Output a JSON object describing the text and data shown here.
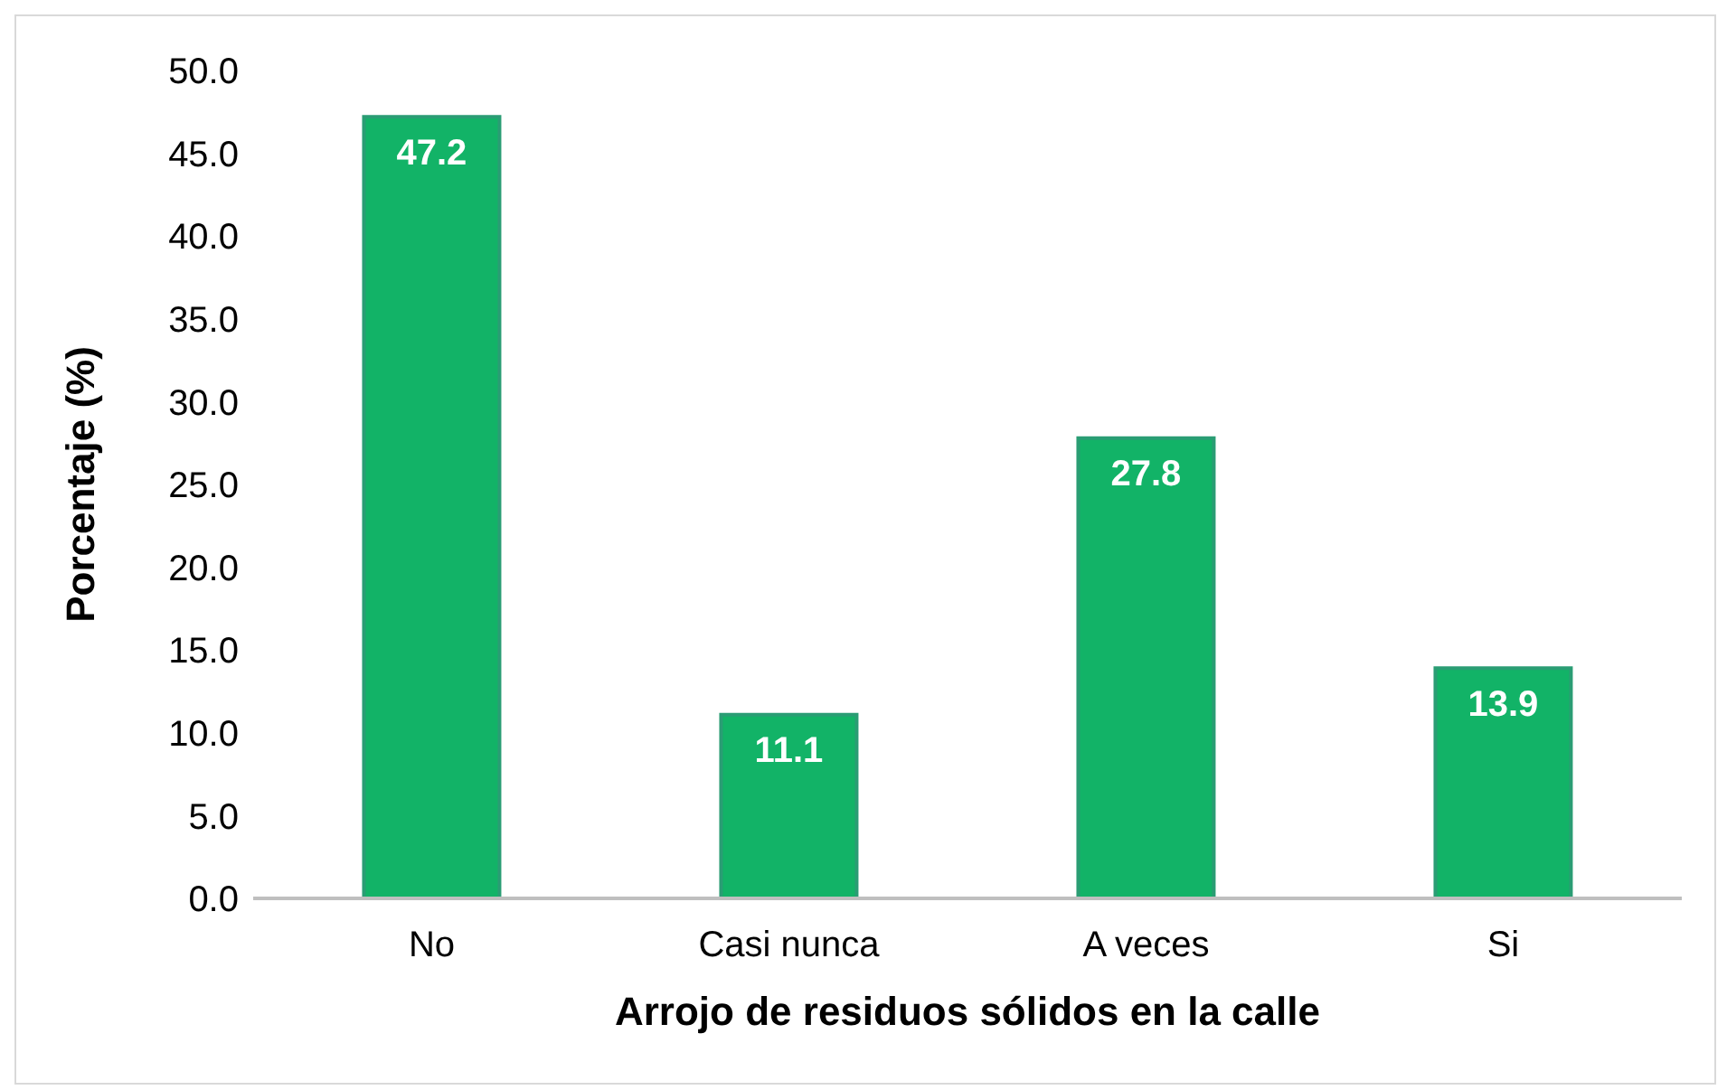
{
  "chart_data": {
    "type": "bar",
    "xlabel": "Arrojo de residuos sólidos en la calle",
    "ylabel": "Porcentaje (%)",
    "categories": [
      "No",
      "Casi nunca",
      "A veces",
      "Si"
    ],
    "values": [
      47.2,
      11.1,
      27.8,
      13.9
    ],
    "color": "#12b367",
    "ylim": [
      0,
      50
    ],
    "yticks": [
      {
        "value": 0,
        "label": "0.0"
      },
      {
        "value": 5,
        "label": "5.0"
      },
      {
        "value": 10,
        "label": "10.0"
      },
      {
        "value": 15,
        "label": "15.0"
      },
      {
        "value": 20,
        "label": "20.0"
      },
      {
        "value": 25,
        "label": "25.0"
      },
      {
        "value": 30,
        "label": "30.0"
      },
      {
        "value": 35,
        "label": "35.0"
      },
      {
        "value": 40,
        "label": "40.0"
      },
      {
        "value": 45,
        "label": "45.0"
      },
      {
        "value": 50,
        "label": "50.0"
      }
    ],
    "data_labels": true,
    "grid": false,
    "legend": false
  }
}
